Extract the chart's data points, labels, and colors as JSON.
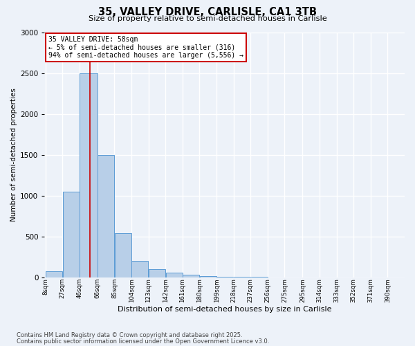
{
  "title1": "35, VALLEY DRIVE, CARLISLE, CA1 3TB",
  "title2": "Size of property relative to semi-detached houses in Carlisle",
  "xlabel": "Distribution of semi-detached houses by size in Carlisle",
  "ylabel": "Number of semi-detached properties",
  "bins": [
    "8sqm",
    "27sqm",
    "46sqm",
    "66sqm",
    "85sqm",
    "104sqm",
    "123sqm",
    "142sqm",
    "161sqm",
    "180sqm",
    "199sqm",
    "218sqm",
    "237sqm",
    "256sqm",
    "275sqm",
    "295sqm",
    "314sqm",
    "333sqm",
    "352sqm",
    "371sqm",
    "390sqm"
  ],
  "bin_edges": [
    8,
    27,
    46,
    66,
    85,
    104,
    123,
    142,
    161,
    180,
    199,
    218,
    237,
    256,
    275,
    295,
    314,
    333,
    352,
    371,
    390
  ],
  "values": [
    75,
    1050,
    2500,
    1500,
    540,
    200,
    100,
    55,
    30,
    12,
    8,
    4,
    2,
    1,
    1,
    0,
    0,
    0,
    0,
    0,
    0
  ],
  "bar_color": "#b8cfe8",
  "bar_edge_color": "#5b9bd5",
  "vline_x": 58,
  "vline_color": "#cc0000",
  "annotation_title": "35 VALLEY DRIVE: 58sqm",
  "annotation_line1": "← 5% of semi-detached houses are smaller (316)",
  "annotation_line2": "94% of semi-detached houses are larger (5,556) →",
  "annotation_box_edgecolor": "#cc0000",
  "ylim": [
    0,
    3000
  ],
  "yticks": [
    0,
    500,
    1000,
    1500,
    2000,
    2500,
    3000
  ],
  "footer1": "Contains HM Land Registry data © Crown copyright and database right 2025.",
  "footer2": "Contains public sector information licensed under the Open Government Licence v3.0.",
  "bg_color": "#edf2f9",
  "grid_color": "#ffffff"
}
